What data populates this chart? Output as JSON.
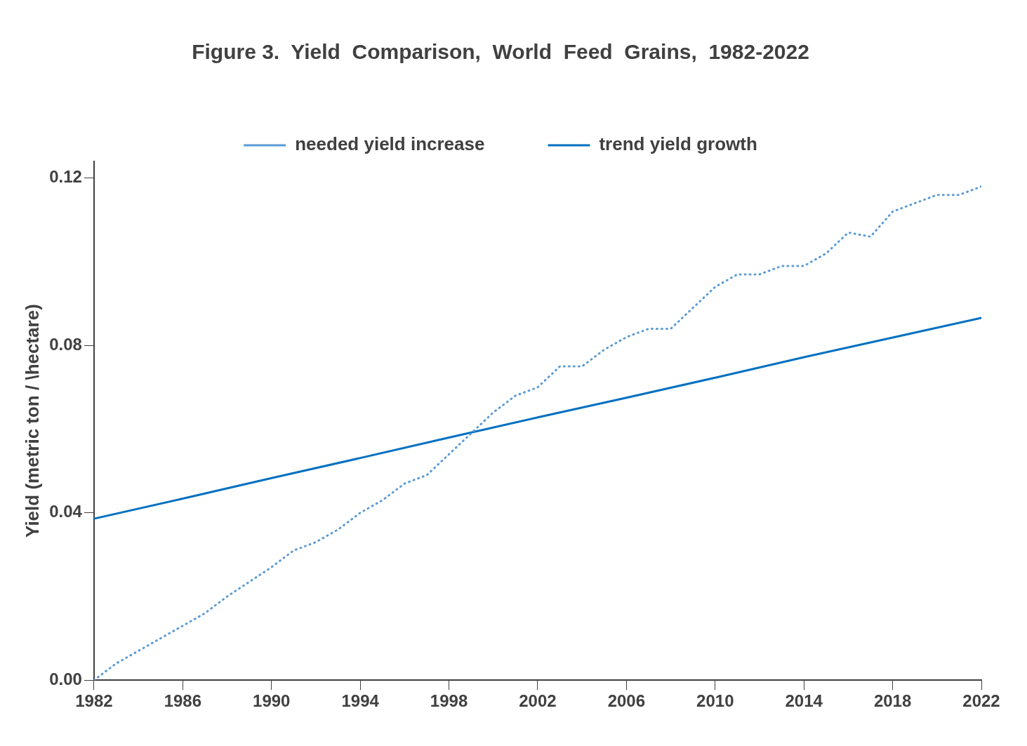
{
  "chart_data": {
    "type": "line",
    "title": "Figure 3.  Yield  Comparison,  World  Feed  Grains,  1982-2022",
    "ylabel": "Yield (metric ton / \\hectare)",
    "xlim": [
      1982,
      2022
    ],
    "xticks": [
      1982,
      1986,
      1990,
      1994,
      1998,
      2002,
      2006,
      2010,
      2014,
      2018,
      2022
    ],
    "ylim": [
      0,
      0.124
    ],
    "yticks": [
      {
        "value": 0,
        "label": "0.00"
      },
      {
        "value": 0.04,
        "label": "0.04"
      },
      {
        "value": 0.08,
        "label": "0.08"
      },
      {
        "value": 0.12,
        "label": "0.12"
      }
    ],
    "grid": false,
    "legend": "top",
    "marker": "none",
    "series": [
      {
        "name": "needed yield increase",
        "color": "#5b9bd5",
        "line_style": "dotted",
        "x": [
          1982,
          1983,
          1984,
          1986,
          1987,
          1988,
          1990,
          1991,
          1992,
          1993,
          1994,
          1995,
          1996,
          1997,
          1998,
          1999,
          2000,
          2001,
          2002,
          2003,
          2004,
          2005,
          2006,
          2007,
          2008,
          2009,
          2010,
          2011,
          2012,
          2013,
          2014,
          2015,
          2016,
          2017,
          2018,
          2019,
          2020,
          2021,
          2022
        ],
        "values": [
          0.0,
          0.004,
          0.007,
          0.013,
          0.016,
          0.02,
          0.027,
          0.031,
          0.033,
          0.036,
          0.04,
          0.043,
          0.047,
          0.049,
          0.054,
          0.059,
          0.064,
          0.068,
          0.07,
          0.075,
          0.075,
          0.079,
          0.082,
          0.084,
          0.084,
          0.089,
          0.094,
          0.097,
          0.097,
          0.099,
          0.099,
          0.102,
          0.107,
          0.106,
          0.112,
          0.114,
          0.116,
          0.116,
          0.118
        ]
      },
      {
        "name": "trend yield growth",
        "color": "#0070c0",
        "line_style": "solid",
        "x": [
          1982,
          1986,
          1990,
          1994,
          1998,
          2002,
          2006,
          2010,
          2014,
          2018,
          2022
        ],
        "values": [
          0.0386,
          0.0434,
          0.0483,
          0.0531,
          0.058,
          0.0628,
          0.0675,
          0.0723,
          0.0772,
          0.0819,
          0.0866
        ]
      }
    ]
  }
}
